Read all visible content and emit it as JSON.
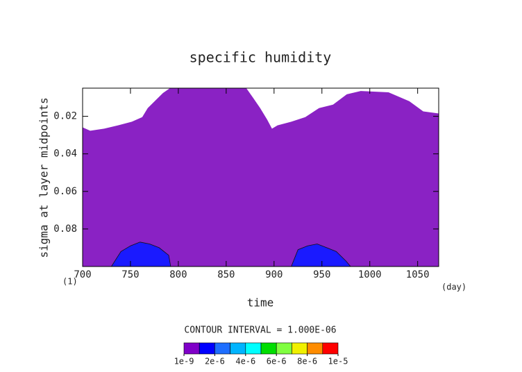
{
  "chart_data": {
    "type": "contour",
    "title": "specific humidity",
    "x_label": "time",
    "y_label": "sigma at layer midpoints",
    "x_unit": "(day)",
    "y_unit": "(1)",
    "contour_interval": "CONTOUR INTERVAL = 1.000E-06",
    "xlim": [
      700,
      1072
    ],
    "ylim": [
      0.1,
      0.005
    ],
    "xticks": [
      700,
      750,
      800,
      850,
      900,
      950,
      1000,
      1050
    ],
    "yticks": [
      0.02,
      0.04,
      0.06,
      0.08
    ],
    "regions": [
      {
        "color": "#8a22c4",
        "x": [
          700,
          708,
          722.5,
          737,
          751.4,
          762.3,
          768,
          776.8,
          784,
          791.3,
          831,
          871,
          878,
          885.5,
          892.8,
          897.8,
          903.6,
          918,
          932.6,
          947,
          961.6,
          976,
          990.6,
          1019.6,
          1041.3,
          1055.8,
          1072
        ],
        "values": [
          0.0259,
          0.0277,
          0.0266,
          0.0248,
          0.0229,
          0.0204,
          0.0156,
          0.0112,
          0.0076,
          0.005,
          0.005,
          0.005,
          0.0101,
          0.0156,
          0.0218,
          0.0266,
          0.0248,
          0.0229,
          0.0204,
          0.0156,
          0.0138,
          0.0083,
          0.0065,
          0.0072,
          0.012,
          0.0174,
          0.0185
        ]
      },
      {
        "color": "#1a1aff",
        "x": [
          730,
          740,
          750,
          760,
          770,
          780,
          790,
          792
        ],
        "values": [
          0.1,
          0.092,
          0.089,
          0.087,
          0.088,
          0.09,
          0.094,
          0.1
        ]
      },
      {
        "color": "#1a1aff",
        "x": [
          918,
          925,
          935,
          945,
          955,
          965,
          975,
          980
        ],
        "values": [
          0.1,
          0.091,
          0.089,
          0.088,
          0.09,
          0.092,
          0.097,
          0.1
        ]
      }
    ],
    "colorbar": {
      "colors": [
        "#7f00c8",
        "#0000ff",
        "#1e6eff",
        "#00b4ff",
        "#00ffff",
        "#00dd00",
        "#80ff40",
        "#f0f000",
        "#ff8c00",
        "#ff0000"
      ],
      "lim": [
        0,
        1e-05
      ],
      "ticks": [
        {
          "value": 1e-09,
          "label": "1e-9"
        },
        {
          "value": 2e-06,
          "label": "2e-6"
        },
        {
          "value": 4e-06,
          "label": "4e-6"
        },
        {
          "value": 6e-06,
          "label": "6e-6"
        },
        {
          "value": 8e-06,
          "label": "8e-6"
        },
        {
          "value": 1e-05,
          "label": "1e-5"
        }
      ]
    }
  }
}
